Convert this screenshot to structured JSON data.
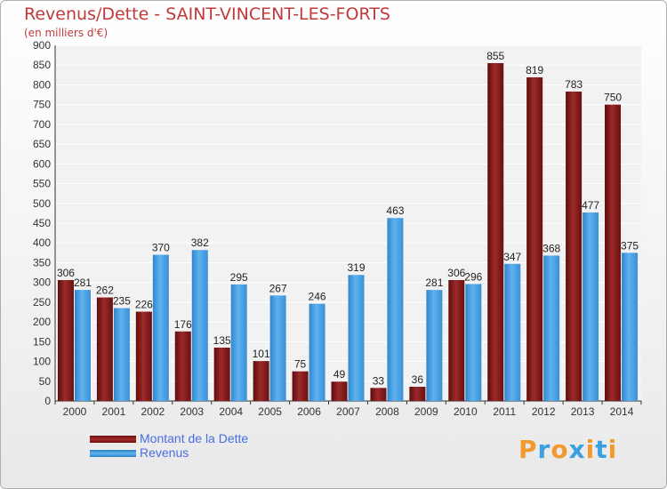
{
  "title": "Revenus/Dette - SAINT-VINCENT-LES-FORTS",
  "subtitle": "(en milliers d'€)",
  "logo": {
    "text": "Proxiti",
    "letters": [
      "P",
      "r",
      "o",
      "x",
      "i",
      "t",
      "i"
    ],
    "colors": [
      "#f29a2e",
      "#3aa0e0",
      "#f29a2e",
      "#3aa0e0",
      "#f29a2e",
      "#3aa0e0",
      "#f29a2e"
    ]
  },
  "chart_data": {
    "type": "bar",
    "title": "Revenus/Dette - SAINT-VINCENT-LES-FORTS",
    "ylabel": "(en milliers d'€)",
    "xlabel": "",
    "categories": [
      "2000",
      "2001",
      "2002",
      "2003",
      "2004",
      "2005",
      "2006",
      "2007",
      "2008",
      "2009",
      "2010",
      "2011",
      "2012",
      "2013",
      "2014"
    ],
    "series": [
      {
        "name": "Montant de la Dette",
        "color": "#8b1a1a",
        "values": [
          306,
          262,
          226,
          176,
          135,
          101,
          75,
          49,
          33,
          36,
          306,
          855,
          819,
          783,
          750
        ]
      },
      {
        "name": "Revenus",
        "color": "#3d9ae0",
        "values": [
          281,
          235,
          370,
          382,
          295,
          267,
          246,
          319,
          463,
          281,
          296,
          347,
          368,
          477,
          375
        ]
      }
    ],
    "ylim": [
      0,
      900
    ],
    "yticks": [
      0,
      50,
      100,
      150,
      200,
      250,
      300,
      350,
      400,
      450,
      500,
      550,
      600,
      650,
      700,
      750,
      800,
      850,
      900
    ],
    "grid": true,
    "legend": "bottom-left"
  }
}
